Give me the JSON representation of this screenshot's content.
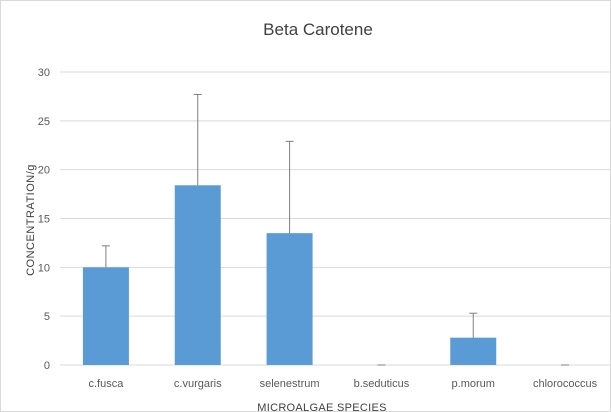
{
  "chart_data": {
    "type": "bar",
    "title": "Beta Carotene",
    "xlabel": "MICROALGAE SPECIES",
    "ylabel": "CONCENTRATION/g",
    "ylim": [
      0,
      30
    ],
    "yticks": [
      0,
      5,
      10,
      15,
      20,
      25,
      30
    ],
    "categories": [
      "c.fusca",
      "c.vurgaris",
      "selenestrum",
      "b.seduticus",
      "p.morum",
      "chlorococcus"
    ],
    "values": [
      10,
      18.4,
      13.5,
      0,
      2.8,
      0
    ],
    "error_upper": [
      2.2,
      9.3,
      9.4,
      0,
      2.5,
      0
    ],
    "bar_color": "#5b9bd5",
    "grid": true,
    "legend": "none"
  }
}
